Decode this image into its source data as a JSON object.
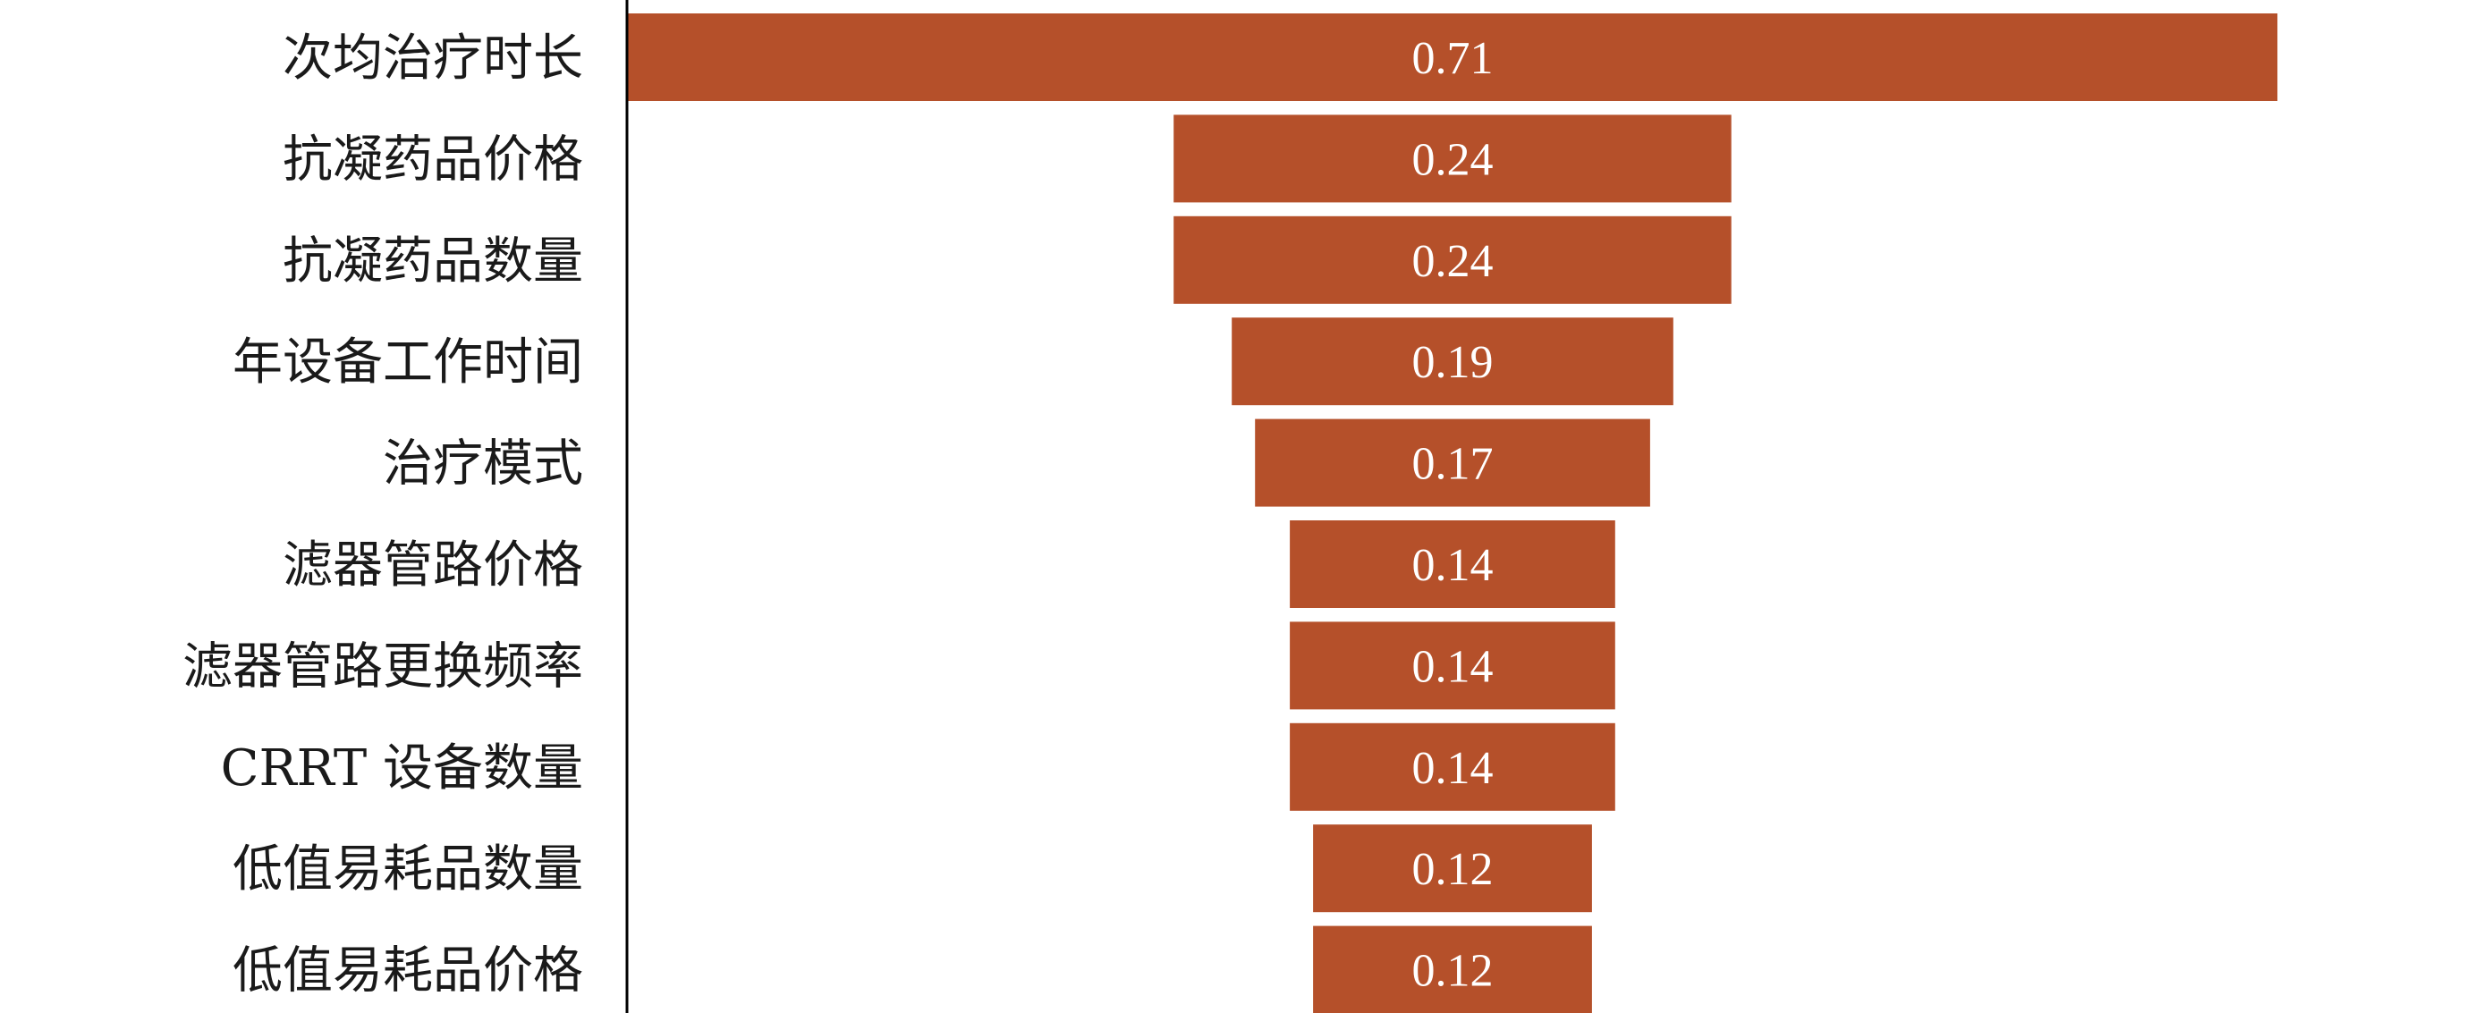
{
  "chart_data": {
    "type": "bar",
    "orientation": "horizontal",
    "style": "tornado",
    "bar_color": "#b5502a",
    "axis_color": "#000000",
    "categories": [
      "次均治疗时长",
      "抗凝药品价格",
      "抗凝药品数量",
      "年设备工作时间",
      "治疗模式",
      "滤器管路价格",
      "滤器管路更换频率",
      "CRRT 设备数量",
      "低值易耗品数量",
      "低值易耗品价格"
    ],
    "values": [
      0.71,
      0.24,
      0.24,
      0.19,
      0.17,
      0.14,
      0.14,
      0.14,
      0.12,
      0.12
    ],
    "value_labels": [
      "0.71",
      "0.24",
      "0.24",
      "0.19",
      "0.17",
      "0.14",
      "0.14",
      "0.14",
      "0.12",
      "0.12"
    ],
    "title": "",
    "xlabel": "",
    "ylabel": "",
    "grid": false,
    "legend": "none"
  }
}
